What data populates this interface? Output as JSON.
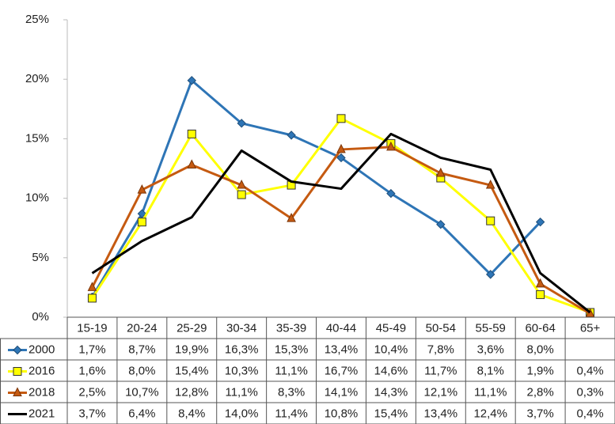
{
  "chart_data": {
    "type": "line",
    "categories": [
      "15-19",
      "20-24",
      "25-29",
      "30-34",
      "35-39",
      "40-44",
      "45-49",
      "50-54",
      "55-59",
      "60-64",
      "65+"
    ],
    "series": [
      {
        "name": "2000",
        "color": "#2e75b6",
        "marker": "diamond",
        "values": [
          1.7,
          8.7,
          19.9,
          16.3,
          15.3,
          13.4,
          10.4,
          7.8,
          3.6,
          8.0,
          null
        ],
        "value_labels": [
          "1,7%",
          "8,7%",
          "19,9%",
          "16,3%",
          "15,3%",
          "13,4%",
          "10,4%",
          "7,8%",
          "3,6%",
          "8,0%",
          null
        ]
      },
      {
        "name": "2016",
        "color": "#ffff00",
        "marker": "square",
        "values": [
          1.6,
          8.0,
          15.4,
          10.3,
          11.1,
          16.7,
          14.6,
          11.7,
          8.1,
          1.9,
          0.4
        ],
        "value_labels": [
          "1,6%",
          "8,0%",
          "15,4%",
          "10,3%",
          "11,1%",
          "16,7%",
          "14,6%",
          "11,7%",
          "8,1%",
          "1,9%",
          "0,4%"
        ]
      },
      {
        "name": "2018",
        "color": "#c55a11",
        "marker": "triangle",
        "values": [
          2.5,
          10.7,
          12.8,
          11.1,
          8.3,
          14.1,
          14.3,
          12.1,
          11.1,
          2.8,
          0.3
        ],
        "value_labels": [
          "2,5%",
          "10,7%",
          "12,8%",
          "11,1%",
          "8,3%",
          "14,1%",
          "14,3%",
          "12,1%",
          "11,1%",
          "2,8%",
          "0,3%"
        ]
      },
      {
        "name": "2021",
        "color": "#000000",
        "marker": "none",
        "values": [
          3.7,
          6.4,
          8.4,
          14.0,
          11.4,
          10.8,
          15.4,
          13.4,
          12.4,
          3.7,
          0.4
        ],
        "value_labels": [
          "3,7%",
          "6,4%",
          "8,4%",
          "14,0%",
          "11,4%",
          "10,8%",
          "15,4%",
          "13,4%",
          "12,4%",
          "3,7%",
          "0,4%"
        ]
      }
    ],
    "ylim": [
      0,
      25
    ],
    "yticks": [
      {
        "value": 0,
        "label": "0%"
      },
      {
        "value": 5,
        "label": "5%"
      },
      {
        "value": 10,
        "label": "10%"
      },
      {
        "value": 15,
        "label": "15%"
      },
      {
        "value": 20,
        "label": "20%"
      },
      {
        "value": 25,
        "label": "25%"
      }
    ],
    "grid": false,
    "data_table": true
  }
}
